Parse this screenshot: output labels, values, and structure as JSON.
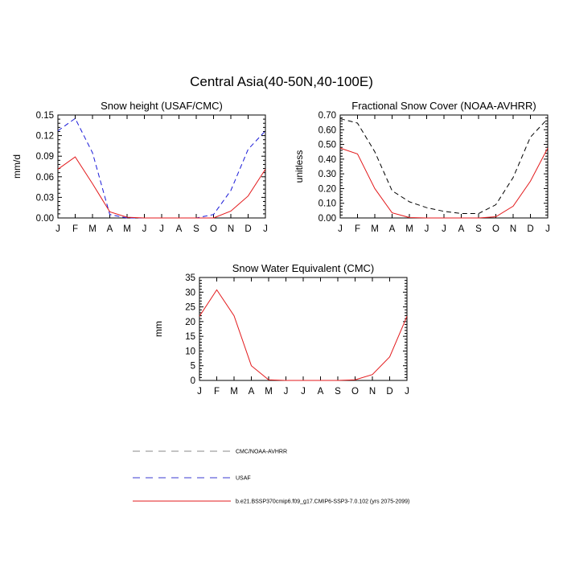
{
  "figure": {
    "title": "Central Asia(40-50N,40-100E)"
  },
  "chart_data": [
    {
      "type": "line",
      "title": "Snow height (USAF/CMC)",
      "xlabel": "",
      "ylabel": "mm/d",
      "categories": [
        "J",
        "F",
        "M",
        "A",
        "M",
        "J",
        "J",
        "A",
        "S",
        "O",
        "N",
        "D",
        "J"
      ],
      "ylim": [
        0,
        0.15
      ],
      "yticks": [
        "0.00",
        "0.03",
        "0.06",
        "0.09",
        "0.12",
        "0.15"
      ],
      "grid": false,
      "series": [
        {
          "name": "USAF",
          "color": "#1a1ad8",
          "dash": "dashed",
          "values": [
            0.127,
            0.145,
            0.095,
            0.005,
            0.0,
            0.0,
            0.0,
            0.0,
            0.0,
            0.005,
            0.04,
            0.1,
            0.127
          ]
        },
        {
          "name": "b.e21.BSSP370cmip6.f09_g17.CMIP6-SSP3-7.0.102 (yrs 2075-2099)",
          "color": "#e31a1c",
          "dash": "solid",
          "values": [
            0.071,
            0.089,
            0.05,
            0.009,
            0.001,
            0.0,
            0.0,
            0.0,
            0.0,
            0.0,
            0.01,
            0.032,
            0.071
          ]
        }
      ]
    },
    {
      "type": "line",
      "title": "Fractional Snow Cover (NOAA-AVHRR)",
      "xlabel": "",
      "ylabel": "unitless",
      "categories": [
        "J",
        "F",
        "M",
        "A",
        "M",
        "J",
        "J",
        "A",
        "S",
        "O",
        "N",
        "D",
        "J"
      ],
      "ylim": [
        0,
        0.7
      ],
      "yticks": [
        "0.00",
        "0.10",
        "0.20",
        "0.30",
        "0.40",
        "0.50",
        "0.60",
        "0.70"
      ],
      "grid": false,
      "series": [
        {
          "name": "CMC/NOAA-AVHRR",
          "color": "#000000",
          "dash": "dashed",
          "values": [
            0.675,
            0.645,
            0.45,
            0.185,
            0.11,
            0.07,
            0.045,
            0.03,
            0.03,
            0.09,
            0.275,
            0.55,
            0.675
          ]
        },
        {
          "name": "b.e21.BSSP370cmip6.f09_g17.CMIP6-SSP3-7.0.102 (yrs 2075-2099)",
          "color": "#e31a1c",
          "dash": "solid",
          "values": [
            0.475,
            0.435,
            0.2,
            0.035,
            0.003,
            0.0,
            0.0,
            0.0,
            0.0,
            0.008,
            0.08,
            0.25,
            0.475
          ]
        }
      ]
    },
    {
      "type": "line",
      "title": "Snow Water Equivalent (CMC)",
      "xlabel": "",
      "ylabel": "mm",
      "categories": [
        "J",
        "F",
        "M",
        "A",
        "M",
        "J",
        "J",
        "A",
        "S",
        "O",
        "N",
        "D",
        "J"
      ],
      "ylim": [
        0,
        35
      ],
      "yticks": [
        "0",
        "5",
        "10",
        "15",
        "20",
        "25",
        "30",
        "35"
      ],
      "grid": false,
      "series": [
        {
          "name": "b.e21.BSSP370cmip6.f09_g17.CMIP6-SSP3-7.0.102 (yrs 2075-2099)",
          "color": "#e31a1c",
          "dash": "solid",
          "values": [
            21.8,
            30.8,
            22.0,
            5.0,
            0.2,
            0.0,
            0.0,
            0.0,
            0.0,
            0.2,
            2.0,
            8.0,
            21.8
          ]
        }
      ]
    }
  ],
  "legend": {
    "placement": "bottom",
    "items": [
      {
        "label": "CMC/NOAA-AVHRR",
        "color": "#888888",
        "dash": "dashed"
      },
      {
        "label": "USAF",
        "color": "#3a3ad0",
        "dash": "dashed"
      },
      {
        "label": "b.e21.BSSP370cmip6.f09_g17.CMIP6-SSP3-7.0.102 (yrs 2075-2099)",
        "color": "#e31a1c",
        "dash": "solid"
      }
    ]
  }
}
